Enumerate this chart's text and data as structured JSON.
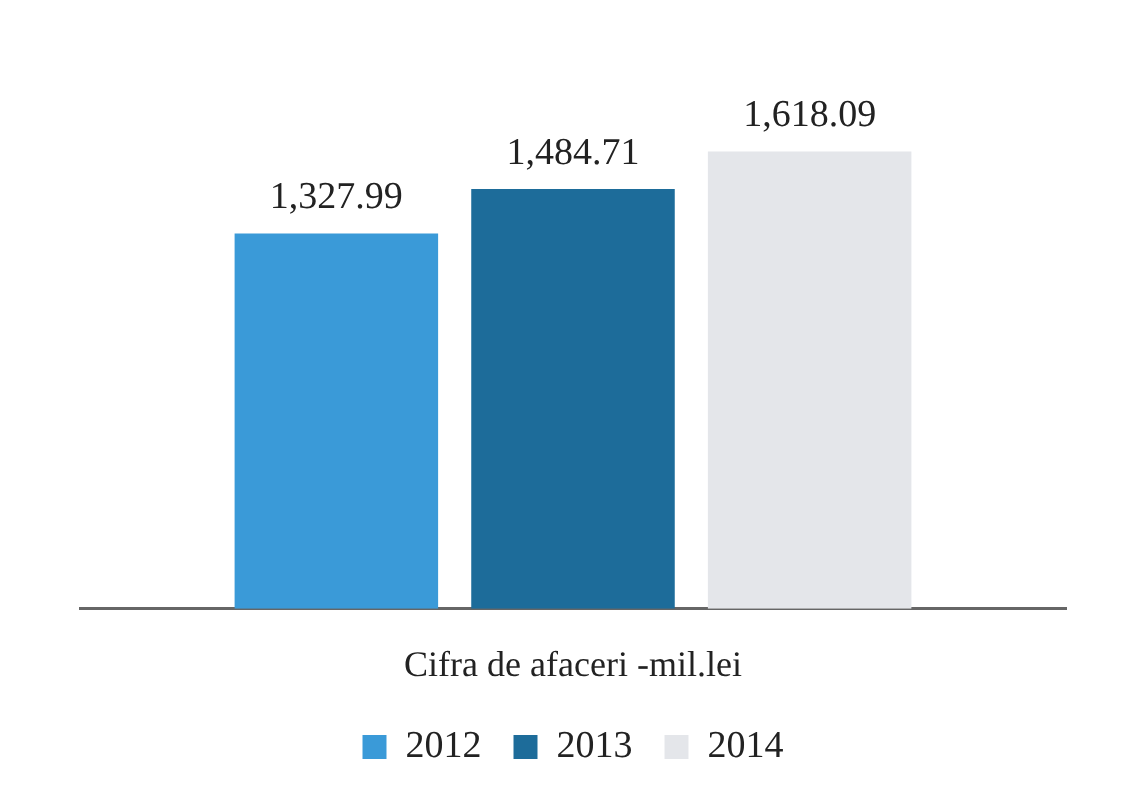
{
  "chart_data": {
    "type": "bar",
    "xlabel": "Cifra de afaceri -mil.lei",
    "categories": [
      null
    ],
    "series": [
      {
        "name": "2012",
        "color": "#3a9ad8",
        "values": [
          1327.99
        ],
        "value_labels": [
          "1,327.99"
        ]
      },
      {
        "name": "2013",
        "color": "#1d6c9a",
        "values": [
          1484.71
        ],
        "value_labels": [
          "1,484.71"
        ]
      },
      {
        "name": "2014",
        "color": "#e4e6ea",
        "values": [
          1618.09
        ],
        "value_labels": [
          "1,618.09"
        ]
      }
    ],
    "legend": "bottom",
    "grid": false,
    "tick_labels": false
  }
}
